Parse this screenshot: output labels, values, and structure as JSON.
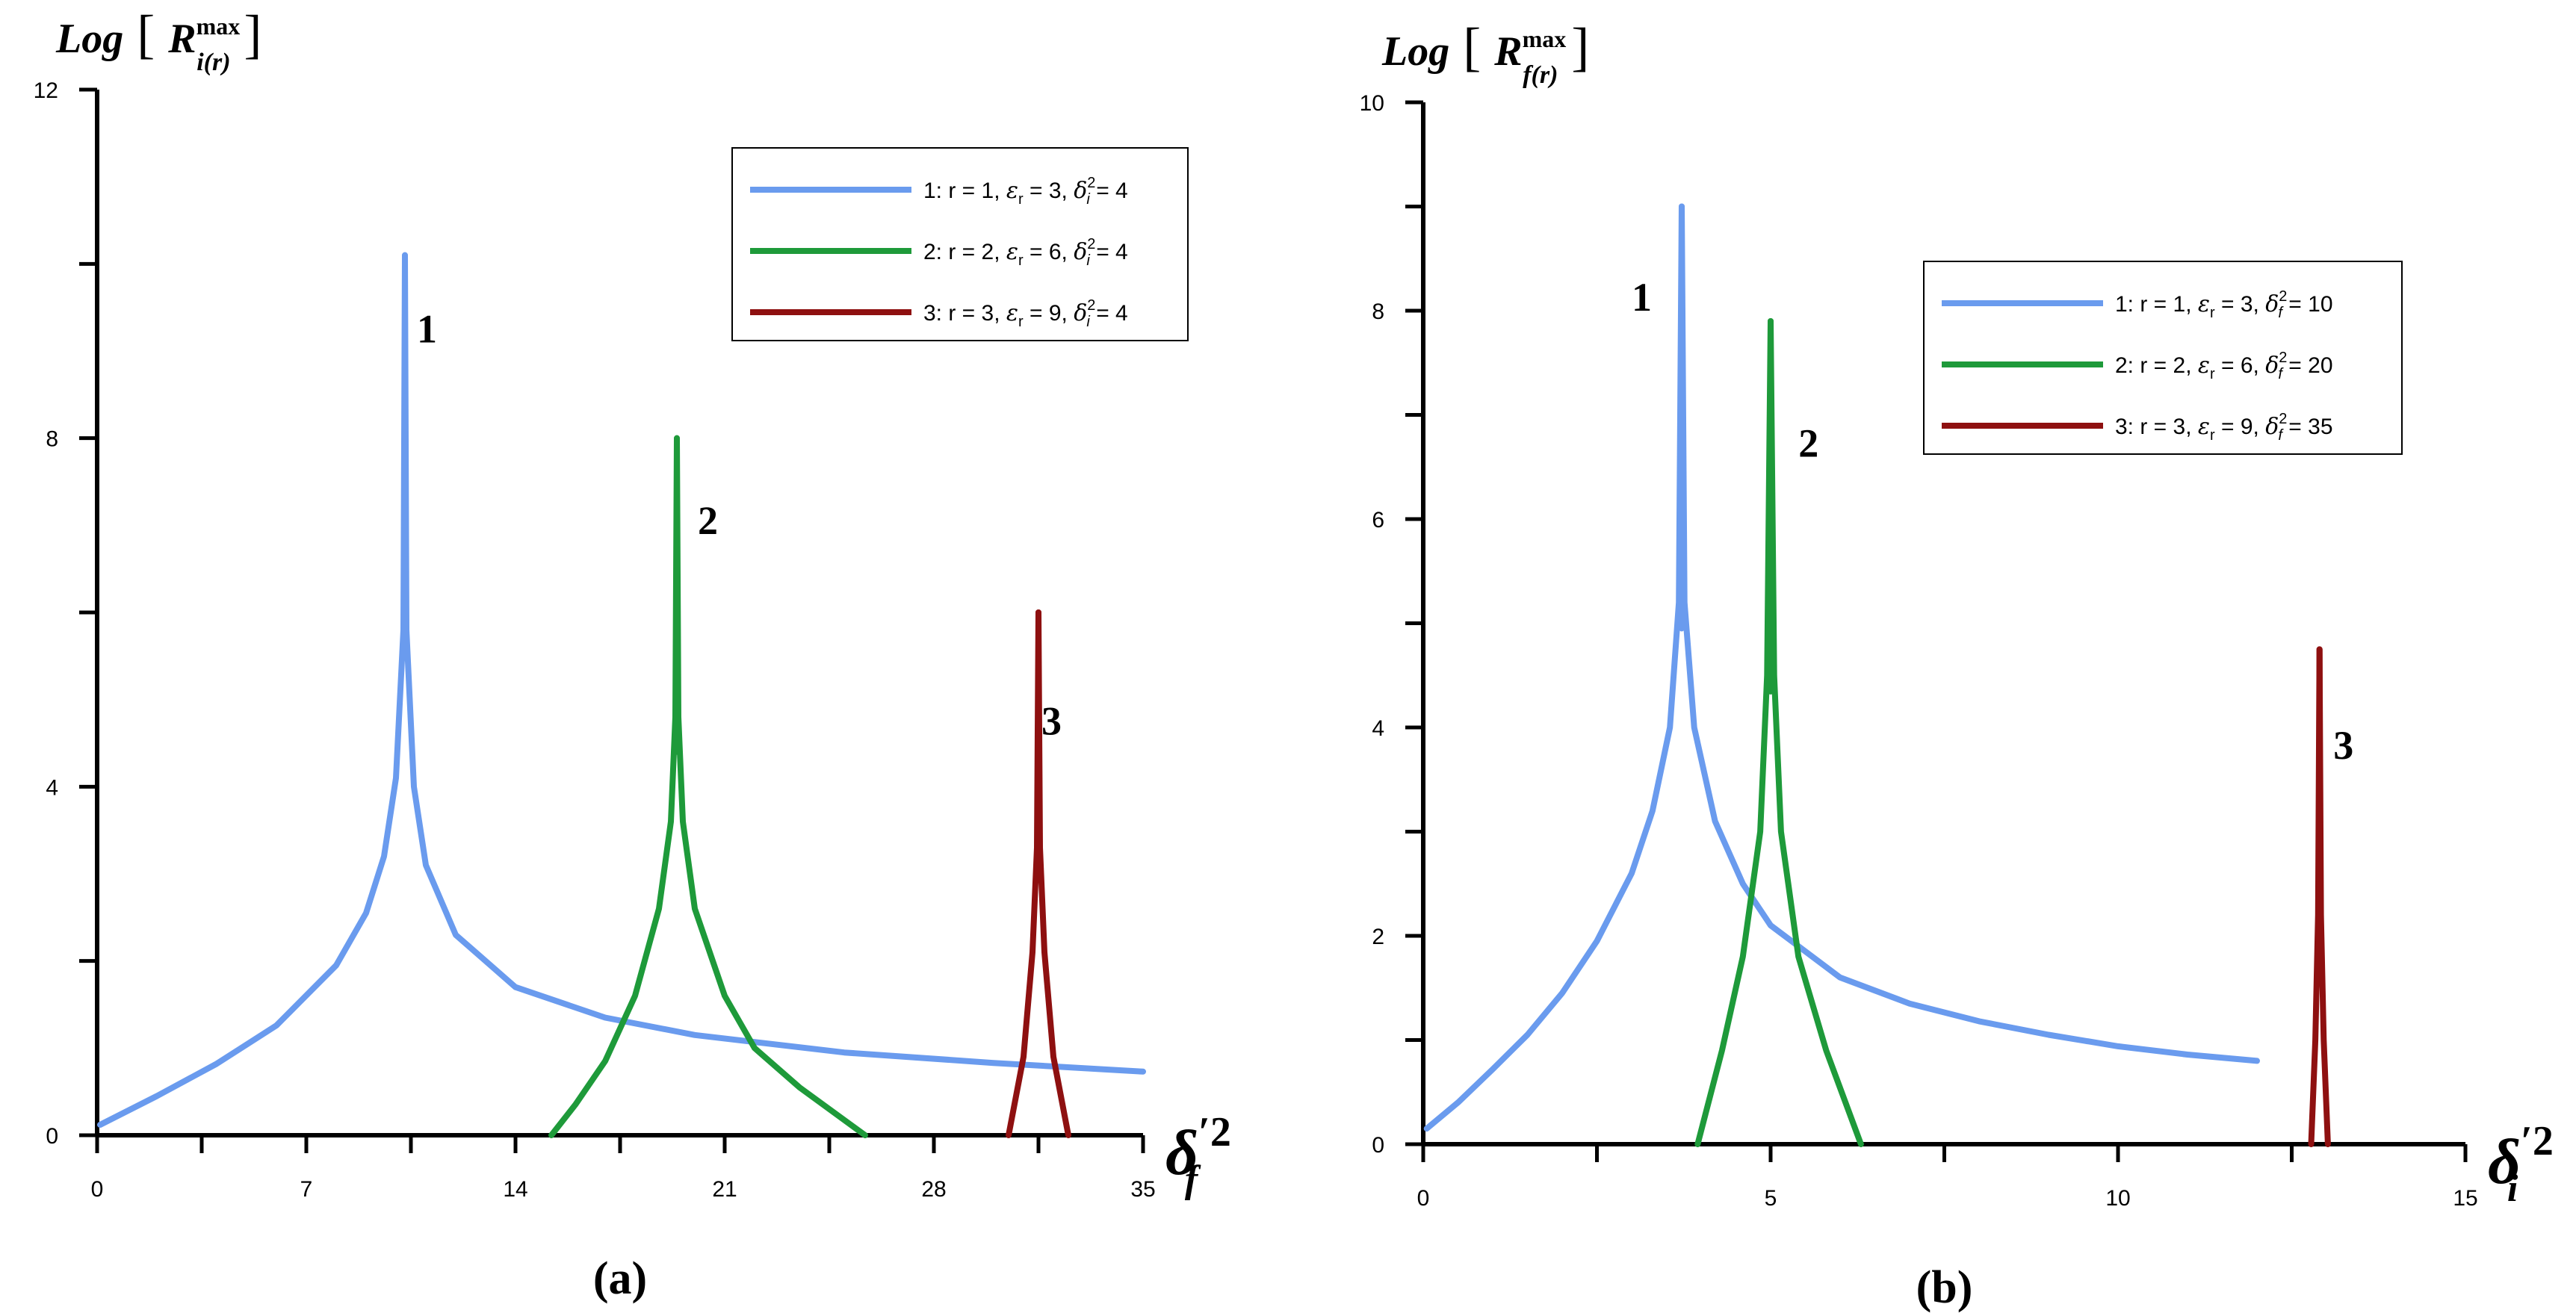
{
  "colors": {
    "curve1": "#6A9BEE",
    "curve2": "#1E9A3A",
    "curve3": "#8E1010",
    "axis": "#000000"
  },
  "chart_data": [
    {
      "type": "line",
      "panel_label": "(a)",
      "ylabel": {
        "base": "Log",
        "main": "R",
        "sup": "max",
        "sub": "i(r)"
      },
      "xlabel": {
        "main": "δ",
        "sub": "f",
        "sup": "′2"
      },
      "xlim": [
        0,
        35
      ],
      "ylim": [
        0,
        12
      ],
      "xticks": [
        0,
        7,
        14,
        21,
        28,
        35
      ],
      "yticks": [
        0,
        4,
        8,
        12
      ],
      "legend_position": "top-right",
      "legend": [
        {
          "id": "1",
          "r": "1",
          "eps": "3",
          "delta": "4"
        },
        {
          "id": "2",
          "r": "2",
          "eps": "6",
          "delta": "4"
        },
        {
          "id": "3",
          "r": "3",
          "eps": "9",
          "delta": "4"
        }
      ],
      "series": [
        {
          "name": "1",
          "label": "1",
          "label_at": [
            10.7,
            9.1
          ],
          "peak": [
            10.3,
            10.1
          ],
          "values": [
            [
              0.1,
              0.12
            ],
            [
              2,
              0.45
            ],
            [
              4,
              0.82
            ],
            [
              6,
              1.26
            ],
            [
              8,
              1.95
            ],
            [
              9,
              2.55
            ],
            [
              9.6,
              3.2
            ],
            [
              10,
              4.1
            ],
            [
              10.25,
              5.8
            ],
            [
              10.3,
              10.1
            ],
            [
              10.35,
              5.8
            ],
            [
              10.6,
              4.0
            ],
            [
              11,
              3.1
            ],
            [
              12,
              2.3
            ],
            [
              14,
              1.7
            ],
            [
              17,
              1.35
            ],
            [
              20,
              1.15
            ],
            [
              25,
              0.95
            ],
            [
              30,
              0.83
            ],
            [
              35,
              0.73
            ]
          ]
        },
        {
          "name": "2",
          "label": "2",
          "label_at": [
            20.1,
            6.9
          ],
          "peak": [
            19.4,
            8.0
          ],
          "values": [
            [
              15.2,
              0.0
            ],
            [
              16,
              0.35
            ],
            [
              17,
              0.85
            ],
            [
              18,
              1.6
            ],
            [
              18.8,
              2.6
            ],
            [
              19.2,
              3.6
            ],
            [
              19.35,
              4.8
            ],
            [
              19.4,
              8.0
            ],
            [
              19.45,
              4.8
            ],
            [
              19.6,
              3.6
            ],
            [
              20,
              2.6
            ],
            [
              21,
              1.6
            ],
            [
              22,
              1.0
            ],
            [
              23.5,
              0.55
            ],
            [
              25.7,
              0.0
            ]
          ]
        },
        {
          "name": "3",
          "label": "3",
          "label_at": [
            31.6,
            4.6
          ],
          "peak": [
            31.5,
            6.0
          ],
          "values": [
            [
              30.5,
              0.0
            ],
            [
              31,
              0.9
            ],
            [
              31.3,
              2.1
            ],
            [
              31.45,
              3.3
            ],
            [
              31.5,
              6.0
            ],
            [
              31.55,
              3.3
            ],
            [
              31.7,
              2.1
            ],
            [
              32,
              0.9
            ],
            [
              32.5,
              0.0
            ]
          ]
        }
      ]
    },
    {
      "type": "line",
      "panel_label": "(b)",
      "ylabel": {
        "base": "Log",
        "main": "R",
        "sup": "max",
        "sub": "f(r)"
      },
      "xlabel": {
        "main": "δ",
        "sub": "i",
        "sup": "′2"
      },
      "xlim": [
        0,
        15
      ],
      "ylim": [
        0,
        10
      ],
      "xticks": [
        0,
        5,
        10,
        15
      ],
      "yticks": [
        0,
        2,
        4,
        6,
        8,
        10
      ],
      "legend_position": "top-right",
      "legend": [
        {
          "id": "1",
          "r": "1",
          "eps": "3",
          "delta": "10"
        },
        {
          "id": "2",
          "r": "2",
          "eps": "6",
          "delta": "20"
        },
        {
          "id": "3",
          "r": "3",
          "eps": "9",
          "delta": "35"
        }
      ],
      "series": [
        {
          "name": "1",
          "label": "1",
          "label_at": [
            3.0,
            8.0
          ],
          "peak": [
            3.72,
            9.0
          ],
          "values": [
            [
              0.05,
              0.15
            ],
            [
              0.5,
              0.4
            ],
            [
              1,
              0.72
            ],
            [
              1.5,
              1.05
            ],
            [
              2,
              1.45
            ],
            [
              2.5,
              1.95
            ],
            [
              3,
              2.6
            ],
            [
              3.3,
              3.2
            ],
            [
              3.55,
              4.0
            ],
            [
              3.68,
              5.2
            ],
            [
              3.72,
              9.0
            ],
            [
              3.76,
              5.2
            ],
            [
              3.9,
              4.0
            ],
            [
              4.2,
              3.1
            ],
            [
              4.6,
              2.5
            ],
            [
              5,
              2.1
            ],
            [
              6,
              1.6
            ],
            [
              7,
              1.35
            ],
            [
              8,
              1.18
            ],
            [
              9,
              1.05
            ],
            [
              10,
              0.94
            ],
            [
              11,
              0.86
            ],
            [
              12,
              0.8
            ]
          ]
        },
        {
          "name": "2",
          "label": "2",
          "label_at": [
            5.4,
            6.6
          ],
          "peak": [
            5.0,
            7.9
          ],
          "values": [
            [
              3.95,
              0.0
            ],
            [
              4.3,
              0.9
            ],
            [
              4.6,
              1.8
            ],
            [
              4.85,
              3.0
            ],
            [
              4.95,
              4.5
            ],
            [
              5.0,
              7.9
            ],
            [
              5.05,
              4.5
            ],
            [
              5.15,
              3.0
            ],
            [
              5.4,
              1.8
            ],
            [
              5.8,
              0.9
            ],
            [
              6.3,
              0.0
            ]
          ]
        },
        {
          "name": "3",
          "label": "3",
          "label_at": [
            13.1,
            3.7
          ],
          "peak": [
            12.9,
            4.75
          ],
          "values": [
            [
              12.78,
              0.0
            ],
            [
              12.84,
              1.0
            ],
            [
              12.88,
              2.2
            ],
            [
              12.9,
              4.75
            ],
            [
              12.92,
              2.2
            ],
            [
              12.96,
              1.0
            ],
            [
              13.02,
              0.0
            ]
          ]
        }
      ]
    }
  ]
}
